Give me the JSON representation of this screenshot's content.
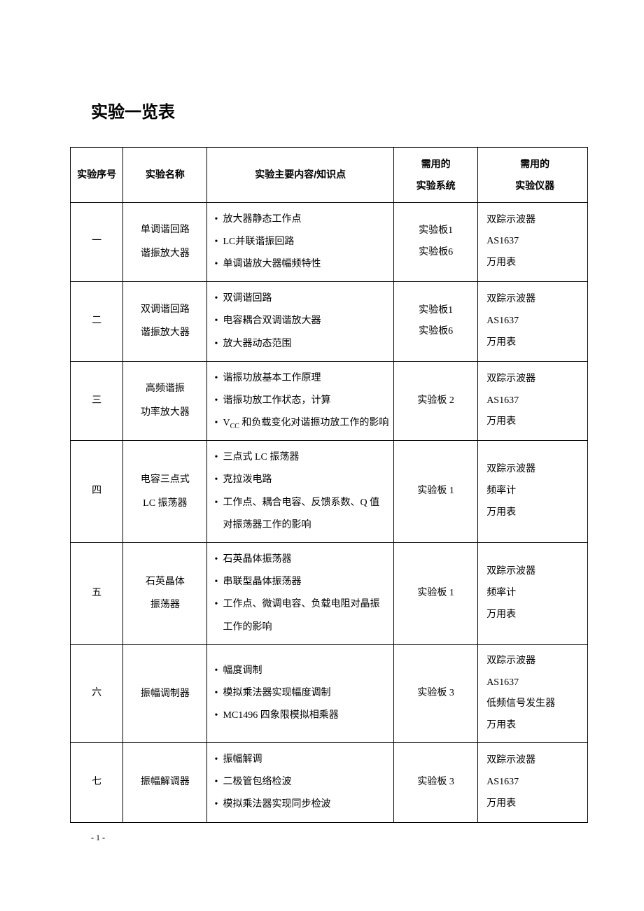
{
  "title": "实验一览表",
  "page_number": "- 1 -",
  "headers": {
    "num": "实验序号",
    "name": "实验名称",
    "content": "实验主要内容/知识点",
    "system_l1": "需用的",
    "system_l2": "实验系统",
    "instrument_l1": "需用的",
    "instrument_l2": "实验仪器"
  },
  "rows": [
    {
      "num": "一",
      "name_l1": "单调谐回路",
      "name_l2": "谐振放大器",
      "content": [
        "放大器静态工作点",
        "LC并联谐振回路",
        "单调谐放大器幅频特性"
      ],
      "system_l1": "实验板1",
      "system_l2": "实验板6",
      "instruments": [
        "双踪示波器",
        "AS1637",
        "万用表"
      ]
    },
    {
      "num": "二",
      "name_l1": "双调谐回路",
      "name_l2": "谐振放大器",
      "content": [
        "双调谐回路",
        "电容耦合双调谐放大器",
        "放大器动态范围"
      ],
      "system_l1": "实验板1",
      "system_l2": "实验板6",
      "instruments": [
        "双踪示波器",
        "AS1637",
        "万用表"
      ]
    },
    {
      "num": "三",
      "name_l1": "高频谐振",
      "name_l2": "功率放大器",
      "content": [
        "谐振功放基本工作原理",
        "谐振功放工作状态，计算",
        "V<sub>CC</sub> 和负载变化对谐振功放工作的影响"
      ],
      "system_l1": "实验板 2",
      "system_l2": "",
      "instruments": [
        "双踪示波器",
        "AS1637",
        "万用表"
      ]
    },
    {
      "num": "四",
      "name_l1": "电容三点式",
      "name_l2": "LC 振荡器",
      "content": [
        "三点式 LC 振荡器",
        "克拉泼电路",
        "工作点、耦合电容、反馈系数、Q 值对振荡器工作的影响"
      ],
      "system_l1": "实验板 1",
      "system_l2": "",
      "instruments": [
        "双踪示波器",
        "频率计",
        "万用表"
      ]
    },
    {
      "num": "五",
      "name_l1": "石英晶体",
      "name_l2": "振荡器",
      "content": [
        "石英晶体振荡器",
        "串联型晶体振荡器",
        "工作点、微调电容、负载电阻对晶振工作的影响"
      ],
      "system_l1": "实验板 1",
      "system_l2": "",
      "instruments": [
        "双踪示波器",
        "频率计",
        "万用表"
      ]
    },
    {
      "num": "六",
      "name_l1": "振幅调制器",
      "name_l2": "",
      "content": [
        "幅度调制",
        "模拟乘法器实现幅度调制",
        "MC1496 四象限模拟相乘器"
      ],
      "system_l1": "实验板 3",
      "system_l2": "",
      "instruments": [
        "双踪示波器",
        "AS1637",
        "低频信号发生器",
        "万用表"
      ]
    },
    {
      "num": "七",
      "name_l1": "振幅解调器",
      "name_l2": "",
      "content": [
        "振幅解调",
        "二极管包络检波",
        "模拟乘法器实现同步检波"
      ],
      "system_l1": "实验板 3",
      "system_l2": "",
      "instruments": [
        "双踪示波器",
        "AS1637",
        "万用表"
      ]
    }
  ]
}
